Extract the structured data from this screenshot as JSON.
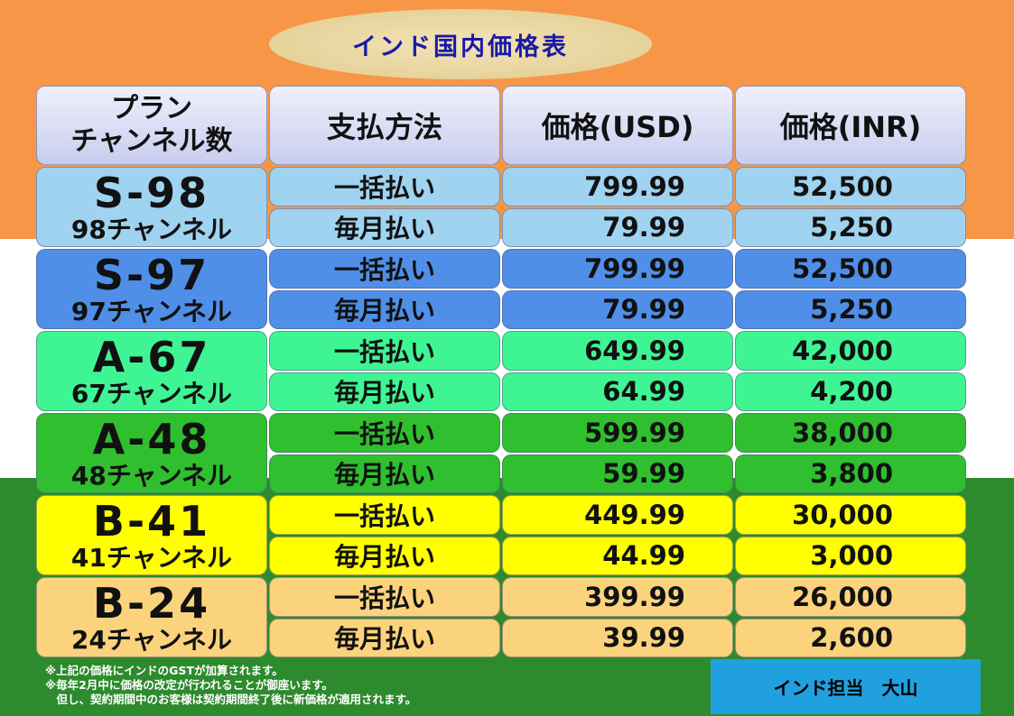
{
  "title": "インド国内価格表",
  "headers": {
    "plan_line1": "プラン",
    "plan_line2": "チャンネル数",
    "payment": "支払方法",
    "usd": "価格(USD)",
    "inr": "価格(INR)"
  },
  "colors": {
    "flag_orange": "#f79646",
    "flag_white": "#ffffff",
    "flag_green": "#2d8a2d",
    "title_text": "#1a1aa6",
    "contact_bg": "#21a0e0"
  },
  "plans": [
    {
      "code": "S-98",
      "channels": "98チャンネル",
      "color": "#9fd3ef",
      "rows": [
        {
          "payment": "一括払い",
          "usd": "799.99",
          "inr": "52,500"
        },
        {
          "payment": "毎月払い",
          "usd": "79.99",
          "inr": "5,250"
        }
      ]
    },
    {
      "code": "S-97",
      "channels": "97チャンネル",
      "color": "#4f8fe8",
      "rows": [
        {
          "payment": "一括払い",
          "usd": "799.99",
          "inr": "52,500"
        },
        {
          "payment": "毎月払い",
          "usd": "79.99",
          "inr": "5,250"
        }
      ]
    },
    {
      "code": "A-67",
      "channels": "67チャンネル",
      "color": "#3ff593",
      "rows": [
        {
          "payment": "一括払い",
          "usd": "649.99",
          "inr": "42,000"
        },
        {
          "payment": "毎月払い",
          "usd": "64.99",
          "inr": "4,200"
        }
      ]
    },
    {
      "code": "A-48",
      "channels": "48チャンネル",
      "color": "#2fbf2f",
      "rows": [
        {
          "payment": "一括払い",
          "usd": "599.99",
          "inr": "38,000"
        },
        {
          "payment": "毎月払い",
          "usd": "59.99",
          "inr": "3,800"
        }
      ]
    },
    {
      "code": "B-41",
      "channels": "41チャンネル",
      "color": "#ffff00",
      "rows": [
        {
          "payment": "一括払い",
          "usd": "449.99",
          "inr": "30,000"
        },
        {
          "payment": "毎月払い",
          "usd": "44.99",
          "inr": "3,000"
        }
      ]
    },
    {
      "code": "B-24",
      "channels": "24チャンネル",
      "color": "#fcd37d",
      "rows": [
        {
          "payment": "一括払い",
          "usd": "399.99",
          "inr": "26,000"
        },
        {
          "payment": "毎月払い",
          "usd": "39.99",
          "inr": "2,600"
        }
      ]
    }
  ],
  "notes": [
    "※上記の価格にインドのGSTが加算されます。",
    "※毎年2月中に価格の改定が行われることが御座います。",
    "　但し、契約期間中のお客様は契約期間終了後に新価格が適用されます。"
  ],
  "contact": "インド担当　大山"
}
